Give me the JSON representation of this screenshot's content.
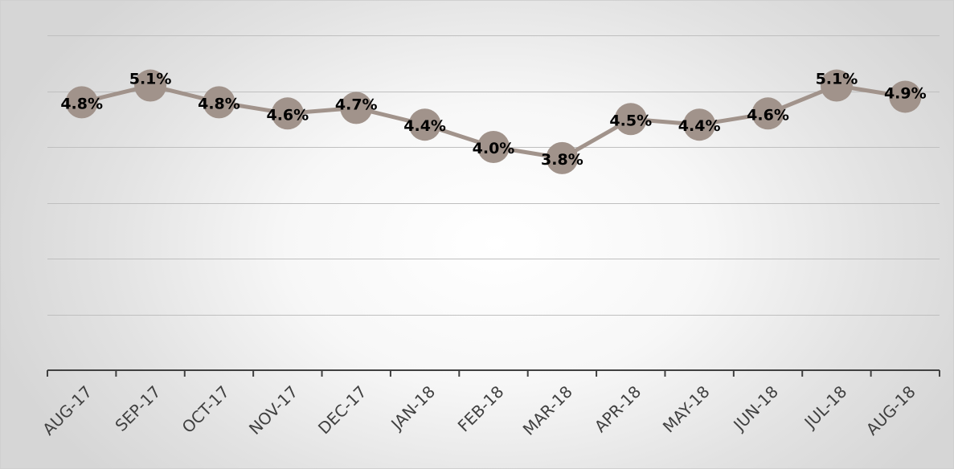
{
  "chart_data": {
    "type": "line",
    "categories": [
      "AUG-17",
      "SEP-17",
      "OCT-17",
      "NOV-17",
      "DEC-17",
      "JAN-18",
      "FEB-18",
      "MAR-18",
      "APR-18",
      "MAY-18",
      "JUN-18",
      "JUL-18",
      "AUG-18"
    ],
    "series": [
      {
        "values": [
          4.8,
          5.1,
          4.8,
          4.6,
          4.7,
          4.4,
          4.0,
          3.8,
          4.5,
          4.4,
          4.6,
          5.1,
          4.9
        ],
        "labels": [
          "4.8%",
          "5.1%",
          "4.8%",
          "4.6%",
          "4.7%",
          "4.4%",
          "4.0%",
          "3.8%",
          "4.5%",
          "4.4%",
          "4.6%",
          "5.1%",
          "4.9%"
        ]
      }
    ],
    "ylim": [
      0,
      6
    ],
    "grid": true,
    "legend": "none",
    "title": "",
    "xlabel": "",
    "ylabel": "",
    "colors": {
      "line": "#a1938b",
      "marker": "#a1938b"
    }
  }
}
